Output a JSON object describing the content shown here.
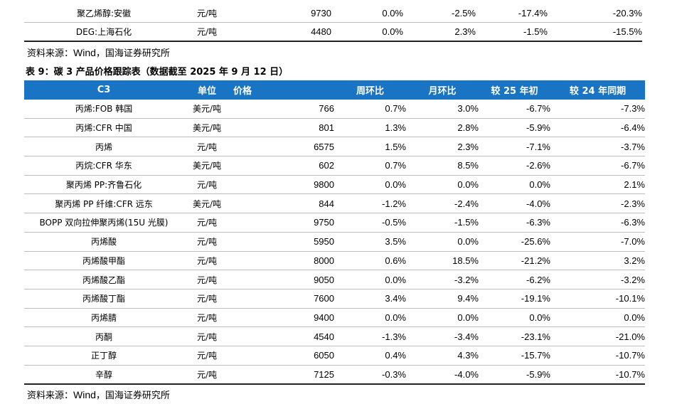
{
  "top_rows": [
    {
      "product": "聚乙烯醇:安徽",
      "unit": "元/吨",
      "price": "9730",
      "wow": "0.0%",
      "mom": "-2.5%",
      "vs_early25": "-17.4%",
      "yoy24": "-20.3%"
    },
    {
      "product": "DEG:上海石化",
      "unit": "元/吨",
      "price": "4480",
      "wow": "0.0%",
      "mom": "2.3%",
      "vs_early25": "-1.5%",
      "yoy24": "-15.5%"
    }
  ],
  "source_top": {
    "prefix": "资料来源：",
    "wind": "Wind",
    "suffix": "，国海证券研究所"
  },
  "caption": "表 9：碳 3 产品价格跟踪表（数据截至 2025 年 9 月 12 日）",
  "headers": {
    "product": "C3",
    "unit": "单位",
    "price": "价格",
    "wow": "周环比",
    "mom": "月环比",
    "vs_early25": "较 25 年初",
    "yoy24": "较 24 年同期"
  },
  "rows": [
    {
      "product": "丙烯:FOB 韩国",
      "unit": "美元/吨",
      "price": "766",
      "wow": "0.7%",
      "mom": "3.0%",
      "vs_early25": "-6.7%",
      "yoy24": "-7.3%"
    },
    {
      "product": "丙烯:CFR 中国",
      "unit": "美元/吨",
      "price": "801",
      "wow": "1.3%",
      "mom": "2.8%",
      "vs_early25": "-5.9%",
      "yoy24": "-6.4%"
    },
    {
      "product": "丙烯",
      "unit": "元/吨",
      "price": "6575",
      "wow": "1.5%",
      "mom": "2.3%",
      "vs_early25": "-7.1%",
      "yoy24": "-3.7%"
    },
    {
      "product": "丙烷:CFR 华东",
      "unit": "美元/吨",
      "price": "602",
      "wow": "0.7%",
      "mom": "8.5%",
      "vs_early25": "-2.6%",
      "yoy24": "-6.7%"
    },
    {
      "product": "聚丙烯 PP:齐鲁石化",
      "unit": "元/吨",
      "price": "9800",
      "wow": "0.0%",
      "mom": "0.0%",
      "vs_early25": "0.0%",
      "yoy24": "2.1%"
    },
    {
      "product": "聚丙烯 PP 纤维:CFR 远东",
      "unit": "美元/吨",
      "price": "844",
      "wow": "-1.2%",
      "mom": "-2.4%",
      "vs_early25": "-4.0%",
      "yoy24": "-2.3%"
    },
    {
      "product": "BOPP 双向拉伸聚丙烯(15U 光膜)",
      "unit": "元/吨",
      "price": "9750",
      "wow": "-0.5%",
      "mom": "-1.5%",
      "vs_early25": "-6.3%",
      "yoy24": "-6.3%"
    },
    {
      "product": "丙烯酸",
      "unit": "元/吨",
      "price": "5950",
      "wow": "3.5%",
      "mom": "0.0%",
      "vs_early25": "-25.6%",
      "yoy24": "-7.0%"
    },
    {
      "product": "丙烯酸甲酯",
      "unit": "元/吨",
      "price": "8000",
      "wow": "0.6%",
      "mom": "18.5%",
      "vs_early25": "-21.2%",
      "yoy24": "3.2%"
    },
    {
      "product": "丙烯酸乙酯",
      "unit": "元/吨",
      "price": "9050",
      "wow": "0.0%",
      "mom": "-3.2%",
      "vs_early25": "-6.2%",
      "yoy24": "-3.2%"
    },
    {
      "product": "丙烯酸丁酯",
      "unit": "元/吨",
      "price": "7600",
      "wow": "3.4%",
      "mom": "9.4%",
      "vs_early25": "-19.1%",
      "yoy24": "-10.1%"
    },
    {
      "product": "丙烯腈",
      "unit": "元/吨",
      "price": "9400",
      "wow": "0.0%",
      "mom": "0.0%",
      "vs_early25": "0.0%",
      "yoy24": "0.0%"
    },
    {
      "product": "丙酮",
      "unit": "元/吨",
      "price": "4540",
      "wow": "-1.3%",
      "mom": "-3.4%",
      "vs_early25": "-23.1%",
      "yoy24": "-21.0%"
    },
    {
      "product": "正丁醇",
      "unit": "元/吨",
      "price": "6050",
      "wow": "0.4%",
      "mom": "4.3%",
      "vs_early25": "-15.7%",
      "yoy24": "-10.7%"
    },
    {
      "product": "辛醇",
      "unit": "元/吨",
      "price": "7125",
      "wow": "-0.3%",
      "mom": "-4.0%",
      "vs_early25": "-5.9%",
      "yoy24": "-10.7%"
    }
  ],
  "source_bottom": {
    "prefix": "资料来源：",
    "wind": "Wind",
    "suffix": "，国海证券研究所"
  },
  "colors": {
    "header_bg": "#1a74c4",
    "header_text": "#ffffff"
  }
}
